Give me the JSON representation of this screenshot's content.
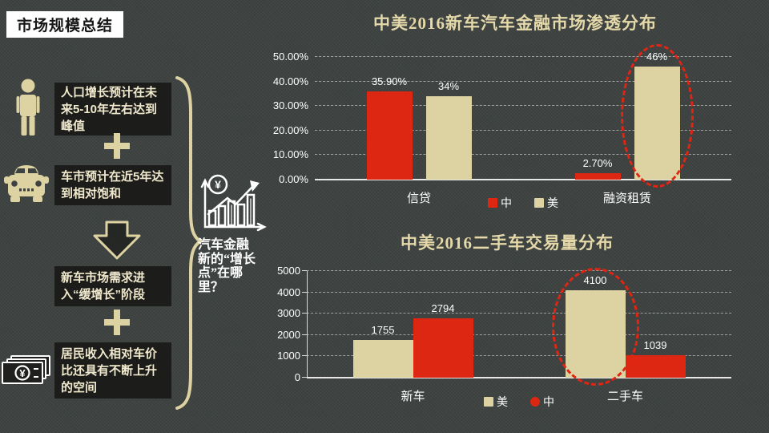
{
  "page_title": "市场规模总结",
  "sidebar": {
    "icons": [
      "person-icon",
      "car-icon",
      "arrow-down-icon",
      "money-icon",
      "plus-icon"
    ],
    "boxes": [
      {
        "text": "人口增长预计在未来5-10年左右达到峰值"
      },
      {
        "text": "车市预计在近5年达到相对饱和"
      },
      {
        "text": "新车市场需求进入“缓增长”阶段"
      },
      {
        "text": "居民收入相对车价比还具有不断上升的空间"
      }
    ]
  },
  "annotation": {
    "icon": "growth-chart-icon",
    "text": "汽车金融新的“增长点”在哪里？",
    "currency_symbol": "¥"
  },
  "colors": {
    "china_red": "#dd2712",
    "us_beige": "#ddd2a2",
    "background": "#3e4341",
    "box_bg": "#1c1c1a",
    "highlight_red": "#e02513"
  },
  "chart_data": [
    {
      "type": "bar",
      "title": "中美2016新车汽车金融市场渗透分布",
      "categories": [
        "信贷",
        "融资租赁"
      ],
      "series": [
        {
          "name": "中",
          "color": "#dd2712",
          "values": [
            35.9,
            2.7
          ],
          "labels": [
            "35.90%",
            "2.70%"
          ]
        },
        {
          "name": "美",
          "color": "#ddd2a2",
          "values": [
            34,
            46
          ],
          "labels": [
            "34%",
            "46%"
          ]
        }
      ],
      "ylim": [
        0,
        50
      ],
      "yticks": [
        "50.00%",
        "40.00%",
        "30.00%",
        "20.00%",
        "10.00%",
        "0.00%"
      ],
      "grid": true,
      "legend_position": "bottom",
      "legend": [
        {
          "name": "中",
          "color": "#dd2712",
          "shape": "square"
        },
        {
          "name": "美",
          "color": "#ddd2a2",
          "shape": "square"
        }
      ],
      "highlight": {
        "category": "融资租赁",
        "series": "美",
        "style": "red-dashed-ellipse"
      }
    },
    {
      "type": "bar",
      "title": "中美2016二手车交易量分布",
      "categories": [
        "新车",
        "二手车"
      ],
      "series": [
        {
          "name": "美",
          "color": "#ddd2a2",
          "values": [
            1755,
            4100
          ],
          "labels": [
            "1755",
            "4100"
          ]
        },
        {
          "name": "中",
          "color": "#dd2712",
          "values": [
            2794,
            1039
          ],
          "labels": [
            "2794",
            "1039"
          ]
        }
      ],
      "ylim": [
        0,
        5000
      ],
      "yticks": [
        "5000",
        "4000",
        "3000",
        "2000",
        "1000",
        "0"
      ],
      "grid": true,
      "legend_position": "bottom",
      "legend": [
        {
          "name": "美",
          "color": "#ddd2a2",
          "shape": "square"
        },
        {
          "name": "中",
          "color": "#dd2712",
          "shape": "circle"
        }
      ],
      "highlight": {
        "category": "二手车",
        "series": "美",
        "style": "red-dashed-ellipse"
      }
    }
  ]
}
